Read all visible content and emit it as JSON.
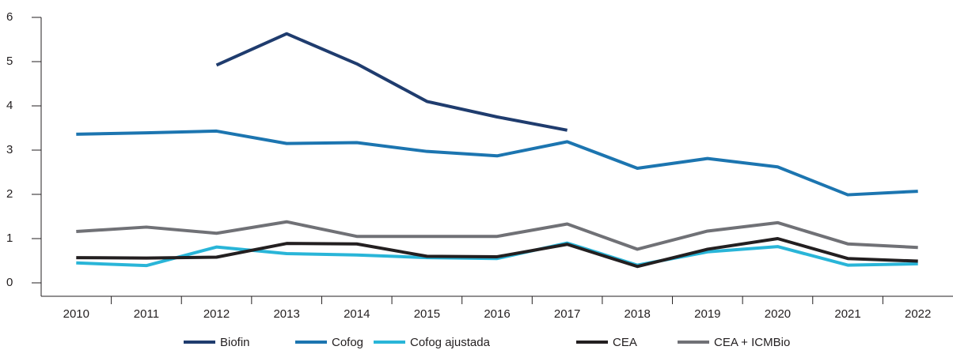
{
  "chart_data": {
    "type": "line",
    "categories": [
      "2010",
      "2011",
      "2012",
      "2013",
      "2014",
      "2015",
      "2016",
      "2017",
      "2018",
      "2019",
      "2020",
      "2021",
      "2022"
    ],
    "series": [
      {
        "name": "Biofin",
        "color": "#1f3c6e",
        "values": [
          null,
          null,
          4.92,
          5.63,
          4.95,
          4.1,
          3.75,
          3.45,
          null,
          null,
          null,
          null,
          null
        ]
      },
      {
        "name": "Cofog",
        "color": "#1c75b0",
        "values": [
          3.36,
          3.39,
          3.43,
          3.15,
          3.17,
          2.97,
          2.87,
          3.19,
          2.59,
          2.81,
          2.62,
          1.99,
          2.07
        ]
      },
      {
        "name": "Cofog ajustada",
        "color": "#29b5d8",
        "values": [
          0.45,
          0.39,
          0.81,
          0.66,
          0.63,
          0.57,
          0.55,
          0.9,
          0.4,
          0.7,
          0.82,
          0.4,
          0.43
        ]
      },
      {
        "name": "CEA",
        "color": "#231f20",
        "values": [
          0.57,
          0.56,
          0.58,
          0.89,
          0.88,
          0.6,
          0.59,
          0.87,
          0.37,
          0.76,
          1.0,
          0.55,
          0.49
        ]
      },
      {
        "name": "CEA + ICMBio",
        "color": "#707176",
        "values": [
          1.16,
          1.26,
          1.12,
          1.38,
          1.05,
          1.05,
          1.05,
          1.33,
          0.76,
          1.17,
          1.36,
          0.88,
          0.8
        ]
      }
    ],
    "ylim": [
      0,
      6
    ],
    "yticks": [
      0,
      1,
      2,
      3,
      4,
      5,
      6
    ],
    "grid": false,
    "legend": "bottom"
  }
}
